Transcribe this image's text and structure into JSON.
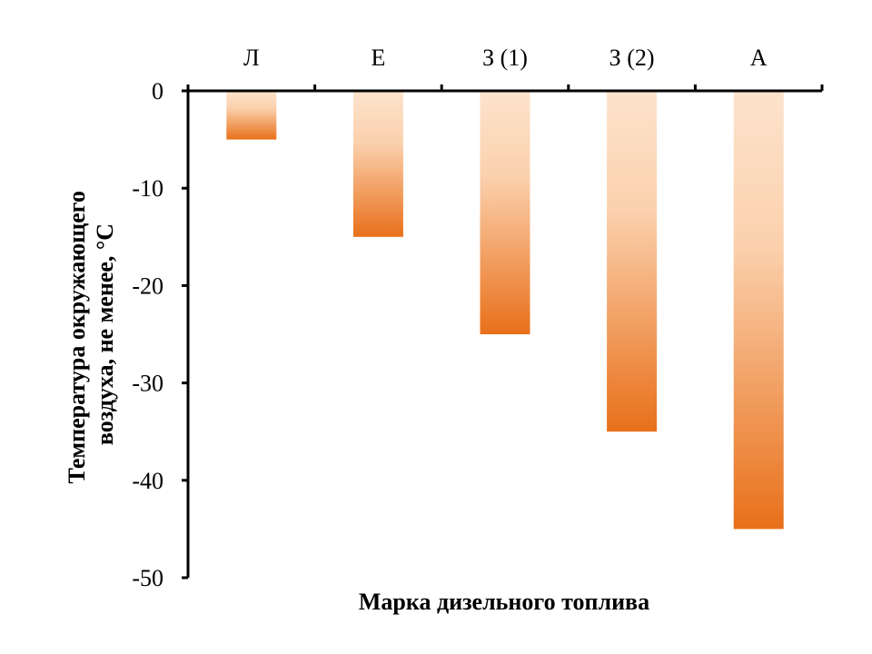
{
  "chart_data": {
    "type": "bar",
    "title": "",
    "categories": [
      "Л",
      "Е",
      "З (1)",
      "З (2)",
      "А"
    ],
    "values": [
      -5,
      -15,
      -25,
      -35,
      -45
    ],
    "xlabel": "Марка дизельного топлива",
    "ylabel_line1": "Температура окружающего",
    "ylabel_line2": "воздуха, не менее, °С",
    "ylim": [
      -50,
      0
    ],
    "yticks": [
      0,
      -10,
      -20,
      -30,
      -40,
      -50
    ],
    "ytick_labels": [
      "0",
      "-10",
      "-20",
      "-30",
      "-40",
      "-50"
    ],
    "x_axis_position": "top",
    "grid": false,
    "legend": "none",
    "colors": {
      "bar_light": "#FDE3CC",
      "bar_dark": "#E8701A",
      "axis": "#000000"
    }
  }
}
